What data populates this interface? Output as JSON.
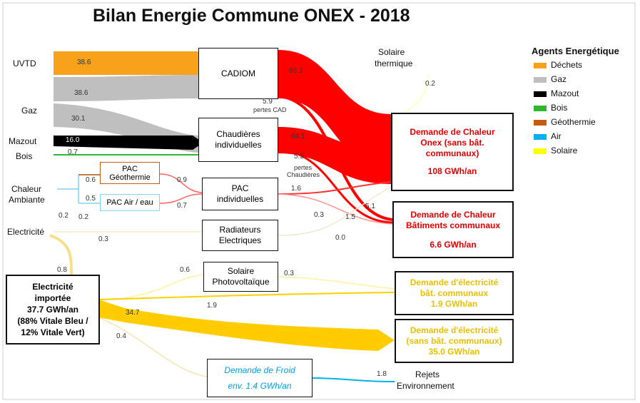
{
  "title": "Bilan Energie Commune ONEX - 2018",
  "legend": {
    "title": "Agents Energétique",
    "items": [
      {
        "label": "Déchets",
        "color": "#f7a21b"
      },
      {
        "label": "Gaz",
        "color": "#bfbfbf"
      },
      {
        "label": "Mazout",
        "color": "#000000"
      },
      {
        "label": "Bois",
        "color": "#2eb82e"
      },
      {
        "label": "Géothermie",
        "color": "#c55a11"
      },
      {
        "label": "Air",
        "color": "#00b0f0"
      },
      {
        "label": "Solaire",
        "color": "#ffff00"
      }
    ]
  },
  "sources": {
    "uvtd": "UVTD",
    "gaz": "Gaz",
    "mazout": "Mazout",
    "bois": "Bois",
    "chaleur_ambiante": [
      "Chaleur",
      "Ambiante"
    ],
    "electricite": "Electricité"
  },
  "nodes": {
    "cadiom": [
      "CADIOM"
    ],
    "chaudieres": [
      "Chaudières",
      "individuelles"
    ],
    "pac_geo": [
      "PAC",
      "Géothermie"
    ],
    "pac_air": [
      "PAC Air / eau"
    ],
    "pac_ind": [
      "PAC",
      "individuelles"
    ],
    "radiateurs": [
      "Radiateurs",
      "Electriques"
    ],
    "solaire_pv": [
      "Solaire",
      "Photovoltaïque"
    ],
    "elec_importee": [
      "Electricité",
      "importée",
      "37.7 GWh/an",
      "(88% Vitale Bleu /",
      "12% Vitale Vert)"
    ],
    "chaleur_onex": [
      "Demande de Chaleur",
      "Onex (sans bât.",
      "communaux)",
      "108 GWh/an"
    ],
    "chaleur_bat": [
      "Demande de Chaleur",
      "Bâtiments communaux",
      "6.6 GWh/an"
    ],
    "elec_bat": [
      "Demande d'électricité",
      "bât. communaux",
      "1.9 GWh/an"
    ],
    "elec_sans": [
      "Demande d'électricité",
      "(sans bât. communaux)",
      "35.0 GWh/an"
    ],
    "froid": [
      "Demande de Froid",
      "env. 1.4 GWh/an"
    ]
  },
  "labels": {
    "solaire_thermique": [
      "Solaire",
      "thermique"
    ],
    "pertes_cad": [
      "pertes CAD"
    ],
    "pertes_chaudieres": [
      "pertes",
      "Chaudières"
    ],
    "rejets": [
      "Rejets",
      "Environnement"
    ]
  },
  "flow_labels": [
    "38.6",
    "38.6",
    "30.1",
    "16.0",
    "0.7",
    "86.3",
    "5.9",
    "68.1",
    "5.5",
    "0.6",
    "0.5",
    "0.9",
    "0.7",
    "1.6",
    "0.2",
    "0.2",
    "0.3",
    "0.3",
    "1.5",
    "5.1",
    "0.0",
    "0.8",
    "0.6",
    "0.3",
    "1.9",
    "34.7",
    "0.4",
    "1.8",
    "0.2"
  ]
}
